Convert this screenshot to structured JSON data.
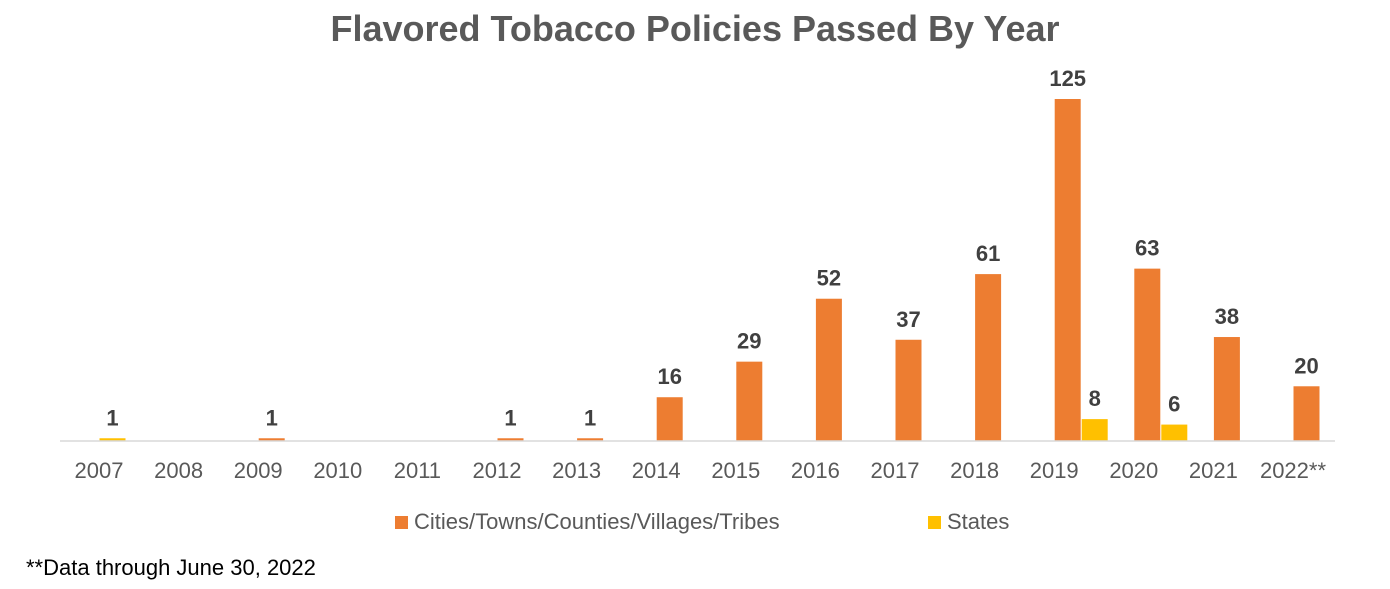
{
  "chart_data": {
    "type": "bar",
    "title": "Flavored Tobacco Policies Passed By Year",
    "categories": [
      "2007",
      "2008",
      "2009",
      "2010",
      "2011",
      "2012",
      "2013",
      "2014",
      "2015",
      "2016",
      "2017",
      "2018",
      "2019",
      "2020",
      "2021",
      "2022**"
    ],
    "series": [
      {
        "name": "Cities/Towns/Counties/Villages/Tribes",
        "color": "#ED7D31",
        "values": [
          0,
          0,
          1,
          0,
          0,
          1,
          1,
          16,
          29,
          52,
          37,
          61,
          125,
          63,
          38,
          20
        ]
      },
      {
        "name": "States",
        "color": "#FFC000",
        "values": [
          1,
          0,
          0,
          0,
          0,
          0,
          0,
          0,
          0,
          0,
          0,
          0,
          8,
          6,
          0,
          0
        ]
      }
    ],
    "data_labels": [
      "1",
      "",
      "1",
      "",
      "",
      "1",
      "1",
      "16",
      "29",
      "52",
      "37",
      "61",
      "125",
      "63",
      "38",
      "20"
    ],
    "state_labels": [
      "",
      "",
      "",
      "",
      "",
      "",
      "",
      "",
      "",
      "",
      "",
      "",
      "8",
      "6",
      "",
      ""
    ],
    "ylim": [
      0,
      125
    ],
    "grid": false,
    "legend_position": "bottom"
  },
  "footnote": "**Data through June 30, 2022"
}
